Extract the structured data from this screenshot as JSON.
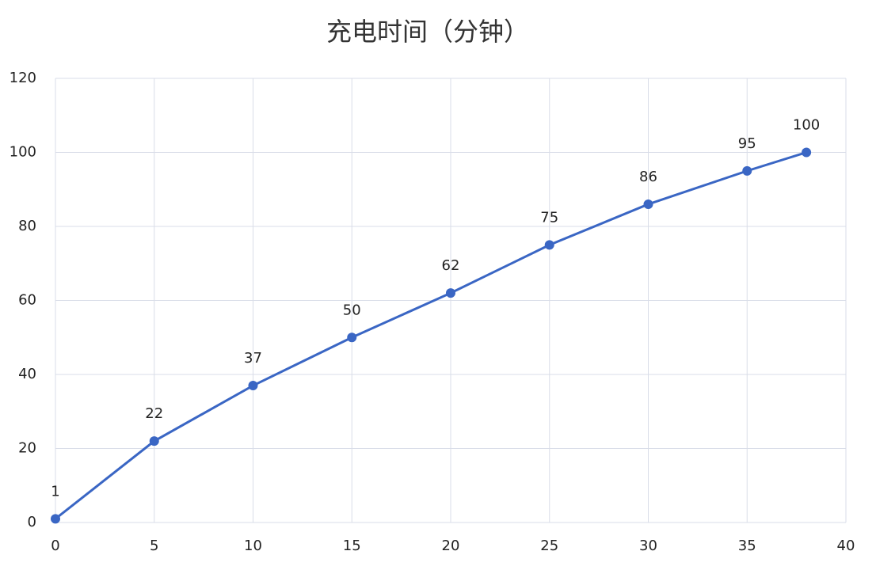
{
  "chart_data": {
    "type": "line",
    "title": "充电时间（分钟）",
    "x": [
      0,
      5,
      10,
      15,
      20,
      25,
      30,
      35,
      38
    ],
    "values": [
      1,
      22,
      37,
      50,
      62,
      75,
      86,
      95,
      100
    ],
    "color": "#3a66c4",
    "xlim": [
      0,
      40
    ],
    "xticks": [
      0,
      5,
      10,
      15,
      20,
      25,
      30,
      35,
      40
    ],
    "ylim": [
      0,
      120
    ],
    "yticks": [
      0,
      20,
      40,
      60,
      80,
      100,
      120
    ],
    "grid": true,
    "data_labels": true
  }
}
